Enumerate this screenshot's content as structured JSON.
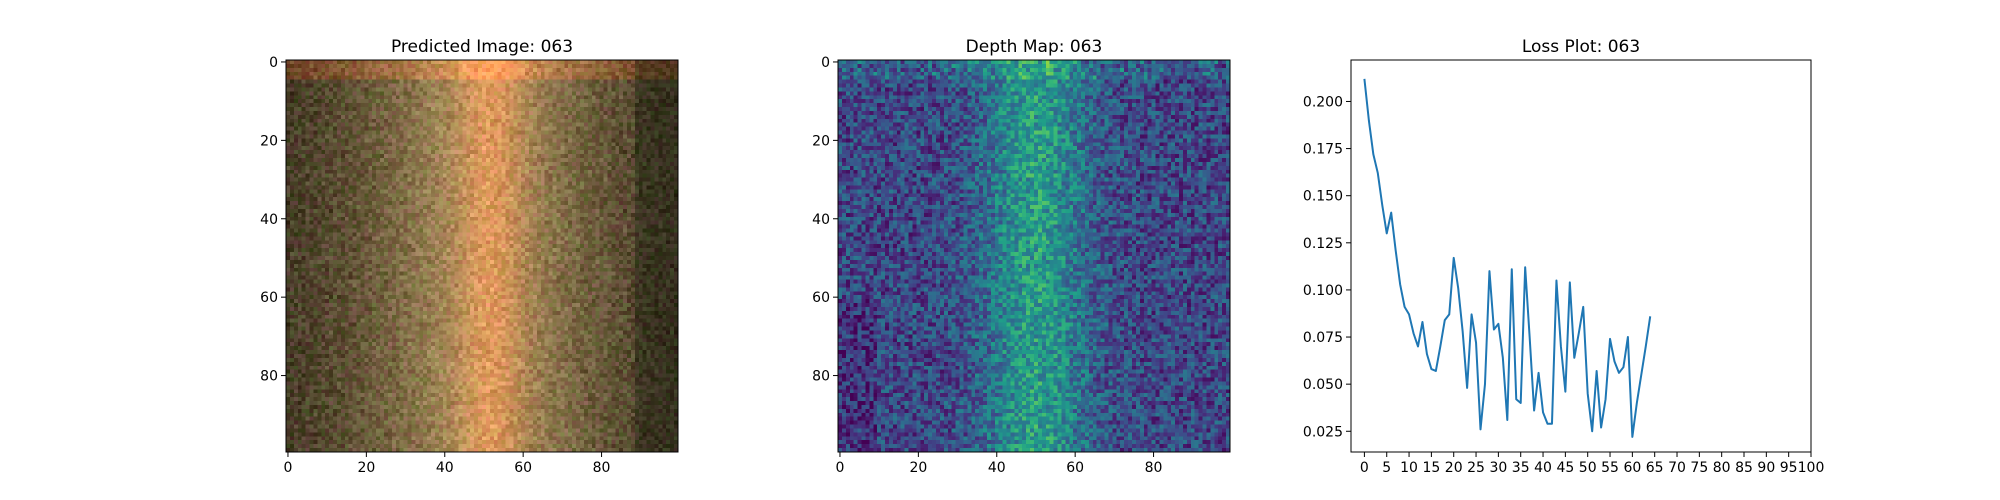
{
  "chart_data": [
    {
      "type": "heatmap",
      "title": "Predicted Image: 063",
      "colormap": "rgb",
      "xlim": [
        0,
        99
      ],
      "ylim": [
        99,
        0
      ],
      "xticks": [
        "0",
        "20",
        "40",
        "60",
        "80"
      ],
      "yticks": [
        "0",
        "20",
        "40",
        "60",
        "80"
      ]
    },
    {
      "type": "heatmap",
      "title": "Depth Map: 063",
      "colormap": "viridis",
      "xlim": [
        0,
        99
      ],
      "ylim": [
        99,
        0
      ],
      "xticks": [
        "0",
        "20",
        "40",
        "60",
        "80"
      ],
      "yticks": [
        "0",
        "20",
        "40",
        "60",
        "80"
      ]
    },
    {
      "type": "line",
      "title": "Loss Plot: 063",
      "xlim": [
        -3,
        100
      ],
      "ylim": [
        0.014,
        0.222
      ],
      "color": "#1f77b4",
      "xticks": [
        "0",
        "5",
        "10",
        "15",
        "20",
        "25",
        "30",
        "35",
        "40",
        "45",
        "50",
        "55",
        "60",
        "65",
        "70",
        "75",
        "80",
        "85",
        "90",
        "95",
        "100"
      ],
      "yticks": [
        "0.025",
        "0.050",
        "0.075",
        "0.100",
        "0.125",
        "0.150",
        "0.175",
        "0.200"
      ],
      "x": [
        0,
        1,
        2,
        3,
        4,
        5,
        6,
        7,
        8,
        9,
        10,
        11,
        12,
        13,
        14,
        15,
        16,
        17,
        18,
        19,
        20,
        21,
        22,
        23,
        24,
        25,
        26,
        27,
        28,
        29,
        30,
        31,
        32,
        33,
        34,
        35,
        36,
        37,
        38,
        39,
        40,
        41,
        42,
        43,
        44,
        45,
        46,
        47,
        48,
        49,
        50,
        51,
        52,
        53,
        54,
        55,
        56,
        57,
        58,
        59,
        60,
        61,
        62,
        63,
        64
      ],
      "y": [
        0.212,
        0.19,
        0.172,
        0.162,
        0.145,
        0.13,
        0.141,
        0.121,
        0.103,
        0.091,
        0.087,
        0.077,
        0.07,
        0.083,
        0.066,
        0.058,
        0.057,
        0.07,
        0.084,
        0.087,
        0.117,
        0.101,
        0.078,
        0.048,
        0.087,
        0.072,
        0.026,
        0.05,
        0.11,
        0.079,
        0.082,
        0.064,
        0.031,
        0.111,
        0.042,
        0.04,
        0.112,
        0.075,
        0.036,
        0.056,
        0.035,
        0.029,
        0.029,
        0.105,
        0.07,
        0.046,
        0.104,
        0.064,
        0.077,
        0.091,
        0.045,
        0.025,
        0.057,
        0.027,
        0.042,
        0.074,
        0.062,
        0.056,
        0.059,
        0.075,
        0.022,
        0.04,
        0.055,
        0.07,
        0.086
      ]
    }
  ]
}
